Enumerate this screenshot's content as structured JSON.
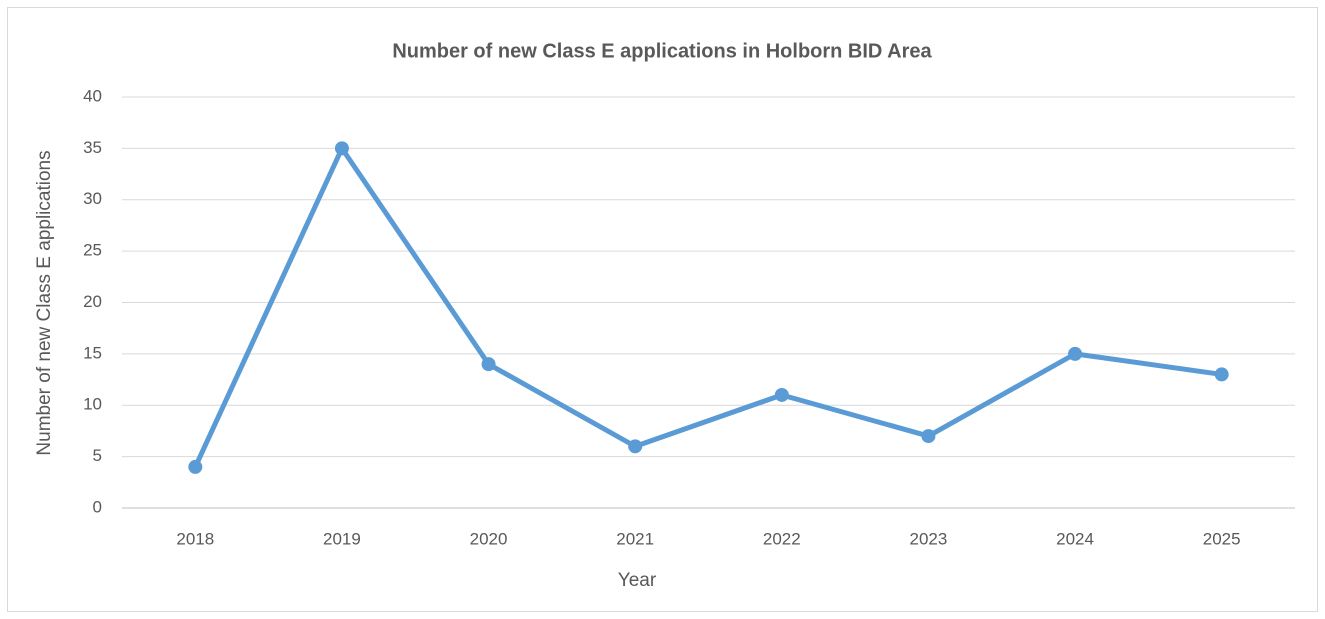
{
  "chart_data": {
    "type": "line",
    "title": "Number of new Class E applications in Holborn BID Area",
    "xlabel": "Year",
    "ylabel": "Number of new Class E applications",
    "categories": [
      "2018",
      "2019",
      "2020",
      "2021",
      "2022",
      "2023",
      "2024",
      "2025"
    ],
    "series": [
      {
        "name": "Number of new Class E applications",
        "color": "#5b9bd5",
        "values": [
          4,
          35,
          14,
          6,
          11,
          7,
          15,
          13
        ]
      }
    ],
    "ylim": [
      0,
      40
    ],
    "yticks": [
      0,
      5,
      10,
      15,
      20,
      25,
      30,
      35,
      40
    ],
    "grid": true
  }
}
